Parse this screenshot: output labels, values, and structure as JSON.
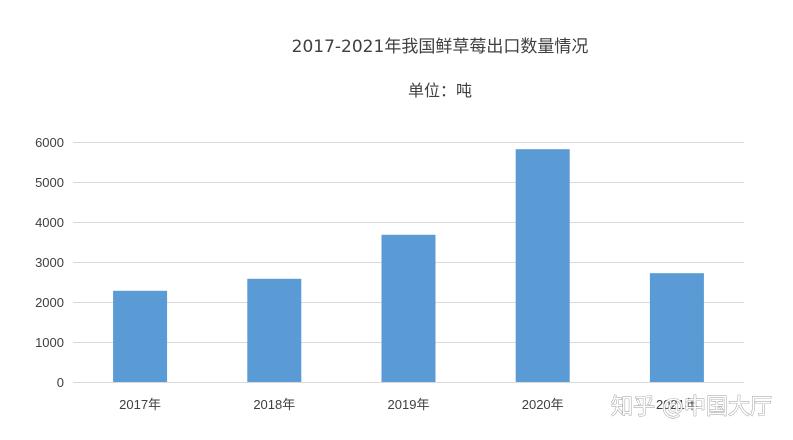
{
  "chart_data": {
    "type": "bar",
    "title": "2017-2021年我国鲜草莓出口数量情况",
    "subtitle": "单位：吨",
    "categories": [
      "2017年",
      "2018年",
      "2019年",
      "2020年",
      "2021年"
    ],
    "values": [
      2280,
      2580,
      3680,
      5820,
      2720
    ],
    "ylim": [
      0,
      6000
    ],
    "yticks": [
      0,
      1000,
      2000,
      3000,
      4000,
      5000,
      6000
    ],
    "grid": true,
    "legend": "none",
    "bar_color": "#5b9bd5",
    "grid_color": "#d9d9d9"
  },
  "watermark": {
    "text": "知乎 @中国大厅"
  }
}
